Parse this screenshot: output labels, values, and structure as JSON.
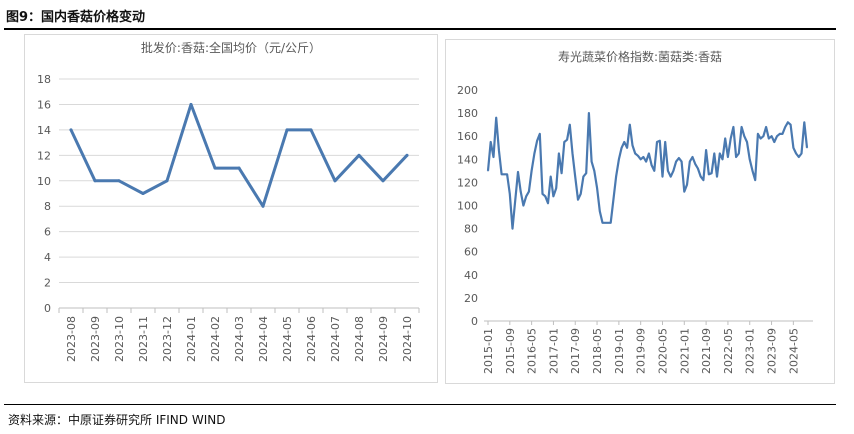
{
  "page": {
    "figure_title": "图9：国内香菇价格变动",
    "source": "资料来源：中原证券研究所 IFIND WIND"
  },
  "chart_data": [
    {
      "type": "line",
      "title": "批发价:香菇:全国均价（元/公斤）",
      "categories": [
        "2023-08",
        "2023-09",
        "2023-10",
        "2023-11",
        "2023-12",
        "2024-01",
        "2024-02",
        "2024-03",
        "2024-04",
        "2024-05",
        "2024-06",
        "2024-07",
        "2024-08",
        "2024-09",
        "2024-10"
      ],
      "values": [
        14,
        10,
        10,
        9,
        10,
        16,
        11,
        11,
        8,
        14,
        14,
        10,
        12,
        10,
        12
      ],
      "ylim": [
        0,
        18
      ],
      "yticks": [
        0,
        2,
        4,
        6,
        8,
        10,
        12,
        14,
        16,
        18
      ],
      "grid": true,
      "color": "#4a79b0"
    },
    {
      "type": "line",
      "title": "寿光蔬菜价格指数:菌菇类:香菇",
      "x_start": "2015-01",
      "x_tick_labels": [
        "2015-01",
        "2015-09",
        "2016-05",
        "2017-01",
        "2017-09",
        "2018-05",
        "2019-01",
        "2019-09",
        "2020-05",
        "2021-01",
        "2021-09",
        "2022-05",
        "2023-01",
        "2023-09",
        "2024-05"
      ],
      "values": [
        130,
        155,
        142,
        176,
        148,
        127,
        127,
        127,
        110,
        80,
        105,
        129,
        112,
        100,
        108,
        112,
        130,
        145,
        156,
        162,
        110,
        108,
        102,
        125,
        108,
        115,
        145,
        128,
        155,
        157,
        170,
        145,
        125,
        105,
        110,
        125,
        128,
        180,
        138,
        130,
        115,
        95,
        85,
        85,
        85,
        85,
        105,
        125,
        140,
        150,
        155,
        150,
        170,
        152,
        145,
        143,
        140,
        142,
        138,
        145,
        135,
        130,
        155,
        156,
        125,
        155,
        130,
        125,
        130,
        138,
        141,
        138,
        112,
        118,
        138,
        142,
        136,
        132,
        125,
        122,
        148,
        127,
        128,
        145,
        125,
        145,
        140,
        158,
        142,
        158,
        168,
        142,
        145,
        168,
        160,
        155,
        140,
        130,
        122,
        162,
        158,
        160,
        168,
        158,
        160,
        155,
        160,
        162,
        162,
        168,
        172,
        170,
        150,
        145,
        142,
        145,
        172,
        150
      ],
      "ylim": [
        0,
        200
      ],
      "yticks": [
        0,
        20,
        40,
        60,
        80,
        100,
        120,
        140,
        160,
        180,
        200
      ],
      "grid": false,
      "color": "#4a79b0"
    }
  ]
}
